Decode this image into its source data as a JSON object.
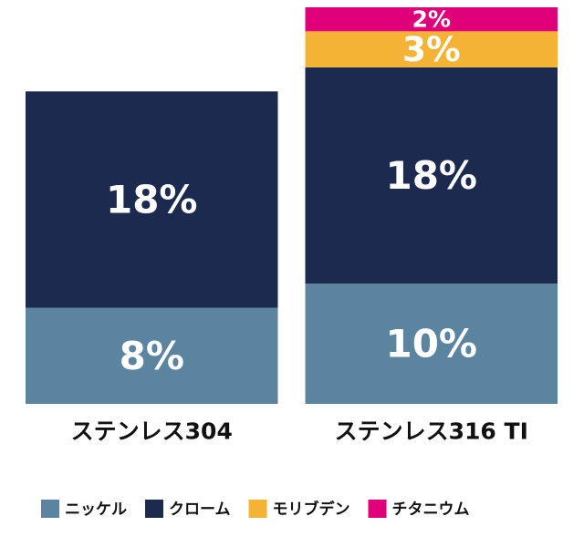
{
  "chart_data": {
    "type": "stacked-bar",
    "categories": [
      "ステンレス304",
      "ステンレス316 TI"
    ],
    "series": [
      {
        "name": "ニッケル",
        "color": "#5b84a0",
        "values": [
          8,
          10
        ],
        "value_labels": [
          "8%",
          "10%"
        ]
      },
      {
        "name": "クローム",
        "color": "#1c2a4f",
        "values": [
          18,
          18
        ],
        "value_labels": [
          "18%",
          "18%"
        ]
      },
      {
        "name": "モリブデン",
        "color": "#f5b335",
        "values": [
          null,
          3
        ],
        "value_labels": [
          null,
          "3%"
        ]
      },
      {
        "name": "チタニウム",
        "color": "#e0007a",
        "values": [
          null,
          2
        ],
        "value_labels": [
          null,
          "2%"
        ]
      }
    ]
  }
}
